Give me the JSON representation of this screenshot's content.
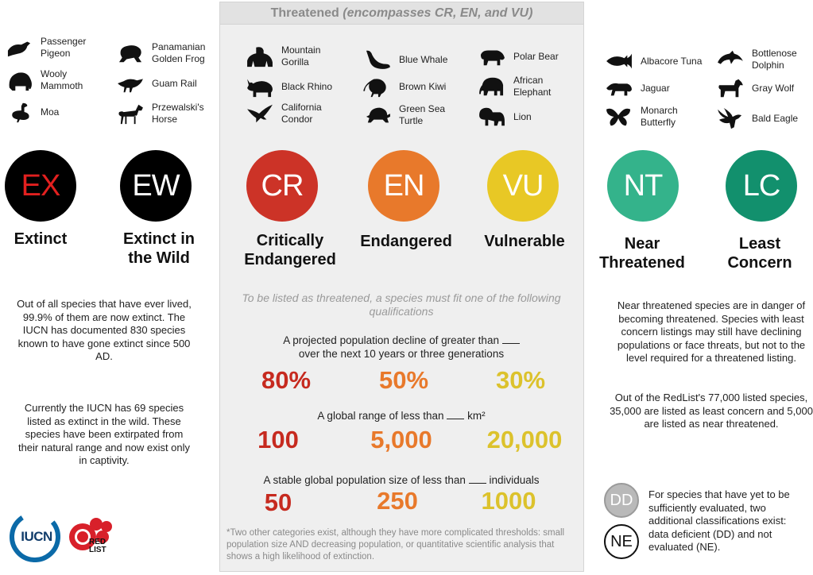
{
  "threatened_header": {
    "title": "Threatened",
    "subtitle": "(encompasses CR, EN, and VU)"
  },
  "animals": [
    {
      "id": "passenger-pigeon",
      "label": "Passenger\nPigeon",
      "icon": "pigeon-icon"
    },
    {
      "id": "wooly-mammoth",
      "label": "Wooly\nMammoth",
      "icon": "mammoth-icon"
    },
    {
      "id": "moa",
      "label": "Moa",
      "icon": "moa-icon"
    },
    {
      "id": "panamanian-golden-frog",
      "label": "Panamanian\nGolden Frog",
      "icon": "frog-icon"
    },
    {
      "id": "guam-rail",
      "label": "Guam Rail",
      "icon": "rail-bird-icon"
    },
    {
      "id": "przewalskis-horse",
      "label": "Przewalski's\nHorse",
      "icon": "horse-icon"
    },
    {
      "id": "mountain-gorilla",
      "label": "Mountain\nGorilla",
      "icon": "gorilla-icon"
    },
    {
      "id": "black-rhino",
      "label": "Black Rhino",
      "icon": "rhino-icon"
    },
    {
      "id": "california-condor",
      "label": "California\nCondor",
      "icon": "condor-icon"
    },
    {
      "id": "blue-whale",
      "label": "Blue Whale",
      "icon": "whale-icon"
    },
    {
      "id": "brown-kiwi",
      "label": "Brown Kiwi",
      "icon": "kiwi-icon"
    },
    {
      "id": "green-sea-turtle",
      "label": "Green Sea\nTurtle",
      "icon": "turtle-icon"
    },
    {
      "id": "polar-bear",
      "label": "Polar Bear",
      "icon": "bear-icon"
    },
    {
      "id": "african-elephant",
      "label": "African\nElephant",
      "icon": "elephant-icon"
    },
    {
      "id": "lion",
      "label": "Lion",
      "icon": "lion-icon"
    },
    {
      "id": "albacore-tuna",
      "label": "Albacore Tuna",
      "icon": "tuna-icon"
    },
    {
      "id": "jaguar",
      "label": "Jaguar",
      "icon": "jaguar-icon"
    },
    {
      "id": "monarch-butterfly",
      "label": "Monarch\nButterfly",
      "icon": "butterfly-icon"
    },
    {
      "id": "bottlenose-dolphin",
      "label": "Bottlenose\nDolphin",
      "icon": "dolphin-icon"
    },
    {
      "id": "gray-wolf",
      "label": "Gray Wolf",
      "icon": "wolf-icon"
    },
    {
      "id": "bald-eagle",
      "label": "Bald Eagle",
      "icon": "eagle-icon"
    }
  ],
  "categories": [
    {
      "code": "EX",
      "label": "Extinct",
      "color": "#000000",
      "text_color": "#e2201f"
    },
    {
      "code": "EW",
      "label": "Extinct in\nthe Wild",
      "color": "#000000",
      "text_color": "#ffffff"
    },
    {
      "code": "CR",
      "label": "Critically\nEndangered",
      "color": "#cc3327",
      "text_color": "#ffffff"
    },
    {
      "code": "EN",
      "label": "Endangered",
      "color": "#e8792b",
      "text_color": "#ffffff"
    },
    {
      "code": "VU",
      "label": "Vulnerable",
      "color": "#e8c825",
      "text_color": "#ffffff"
    },
    {
      "code": "NT",
      "label": "Near\nThreatened",
      "color": "#34b38b",
      "text_color": "#ffffff"
    },
    {
      "code": "LC",
      "label": "Least\nConcern",
      "color": "#12906d",
      "text_color": "#ffffff"
    }
  ],
  "extinct_text": {
    "para1": "Out of all species that have ever lived, 99.9% of them are now extinct.  The IUCN has documented 830 species known to have gone extinct since 500 AD.",
    "para2": "Currently the IUCN has 69 species listed as extinct in the wild. These species have been extirpated from their natural range and now exist only in captivity."
  },
  "threatened_text": {
    "intro": "To be listed as threatened, a species must fit one of the following qualifications",
    "criteria": [
      {
        "line1": "A projected population decline of greater than",
        "line2": "over the next 10 years or three generations",
        "unit": "",
        "values": [
          "80%",
          "50%",
          "30%"
        ]
      },
      {
        "line1": "A global range of less than",
        "line2": "",
        "unit": "km²",
        "values": [
          "100",
          "5,000",
          "20,000"
        ]
      },
      {
        "line1": "A stable global population size of less than",
        "line2": "",
        "unit": "individuals",
        "values": [
          "50",
          "250",
          "1000"
        ]
      }
    ],
    "footnote": "*Two other categories exist, although they have more complicated thresholds: small population size AND decreasing population, or quantitative scientific analysis that shows a high likelihood of extinction."
  },
  "value_colors": [
    "#c62a1f",
    "#e8792b",
    "#dcc22c"
  ],
  "concern_text": {
    "para1": "Near threatened species are in danger of becoming threatened. Species with least concern listings may still have declining populations or face threats, but not to the level required for a threatened listing.",
    "para2": "Out of the RedList's 77,000 listed species, 35,000 are listed as least concern and 5,000 are listed as near threatened."
  },
  "other_classes": {
    "dd": "DD",
    "ne": "NE",
    "text": "For species that have yet to be sufficiently evaluated, two additional classifications exist: data deficient (DD) and not evaluated (NE)."
  },
  "logos": {
    "iucn": "IUCN",
    "redlist_line1": "RED",
    "redlist_line2": "LIST",
    "colors": {
      "iucn": "#0b6aa8",
      "redlist": "#d8202a"
    }
  }
}
